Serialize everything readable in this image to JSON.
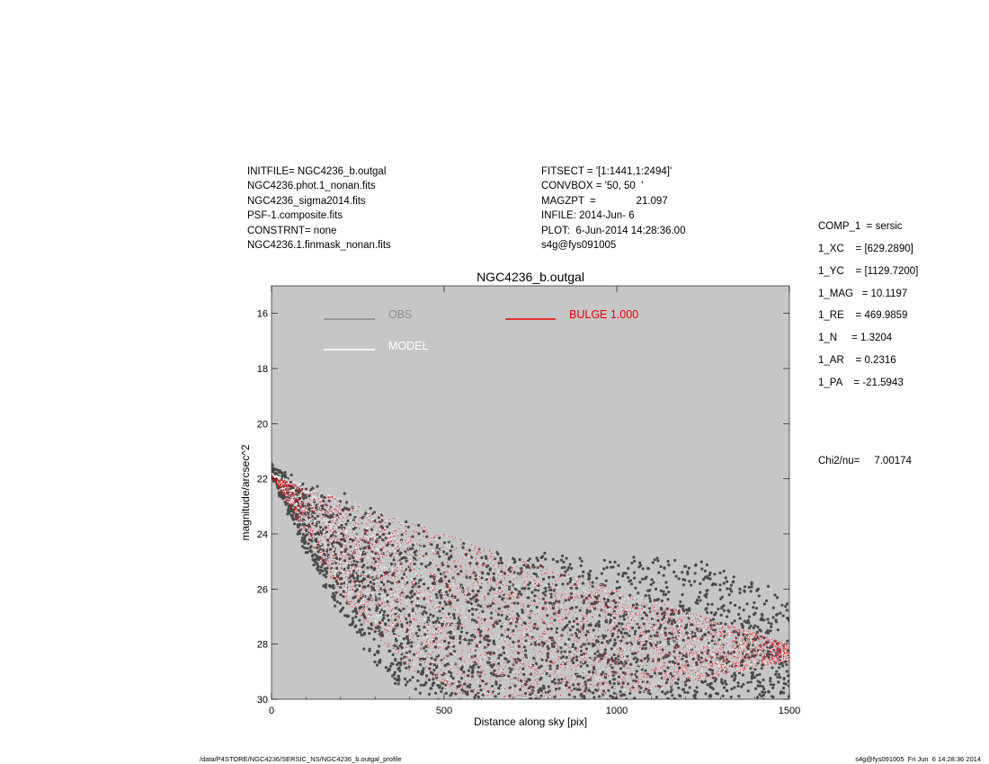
{
  "header_left": [
    "INITFILE= NGC4236_b.outgal",
    "NGC4236.phot.1_nonan.fits",
    "NGC4236_sigma2014.fits",
    "PSF-1.composite.fits",
    "CONSTRNT= none",
    "NGC4236.1.finmask_nonan.fits"
  ],
  "header_mid": [
    "FITSECT = '[1:1441,1:2494]'",
    "CONVBOX = '50, 50  '",
    "MAGZPT  =              21.097",
    "INFILE: 2014-Jun- 6",
    "PLOT:  6-Jun-2014 14:28:36.00",
    "s4g@fys091005"
  ],
  "params": [
    "COMP_1  = sersic",
    "1_XC    = [629.2890]",
    "1_YC    = [1129.7200]",
    "1_MAG   = 10.1197",
    "1_RE    = 469.9859",
    "1_N     = 1.3204",
    "1_AR    = 0.2316",
    "1_PA    = -21.5943"
  ],
  "chi2": "Chi2/nu=     7.00174",
  "footer": {
    "left": "/data/P4STORE/NGC4236/SERSIC_NS/NGC4236_b.outgal_profile",
    "right": "s4g@fys091005  Fri Jun  6 14:28:36 2014"
  },
  "colors": {
    "plot_bg": "#c6c6c6",
    "obs": "#4a4a4a",
    "model": "#f4f4f4",
    "bulge": "#ee0000",
    "legend_obs": "#8c8c8c"
  },
  "chart_data": {
    "type": "scatter",
    "title": "NGC4236_b.outgal",
    "xlabel": "Distance along sky [pix]",
    "ylabel": "magnitude/arcsec^2",
    "xlim": [
      0,
      1500
    ],
    "ylim": [
      30,
      15
    ],
    "y_inverted": true,
    "xticks": [
      "0",
      "500",
      "1000",
      "1500"
    ],
    "yticks": [
      "16",
      "18",
      "20",
      "22",
      "24",
      "26",
      "28",
      "30"
    ],
    "legend": {
      "placement": "top-left"
    },
    "legend_entries": [
      {
        "name": "OBS"
      },
      {
        "name": "MODEL"
      },
      {
        "name": "BULGE  1.000"
      }
    ],
    "series": [
      {
        "name": "OBS",
        "kind": "scatter",
        "envelope_upper": [
          [
            0,
            21.6
          ],
          [
            100,
            22.2
          ],
          [
            200,
            22.6
          ],
          [
            300,
            23.1
          ],
          [
            400,
            23.6
          ],
          [
            500,
            24.0
          ],
          [
            600,
            24.4
          ],
          [
            700,
            24.7
          ],
          [
            800,
            24.8
          ],
          [
            900,
            24.9
          ],
          [
            1000,
            25.0
          ],
          [
            1100,
            24.8
          ],
          [
            1200,
            24.8
          ],
          [
            1300,
            25.3
          ],
          [
            1400,
            25.8
          ],
          [
            1500,
            26.2
          ]
        ],
        "envelope_lower": [
          [
            0,
            21.9
          ],
          [
            50,
            23.3
          ],
          [
            100,
            24.7
          ],
          [
            150,
            25.8
          ],
          [
            200,
            26.9
          ],
          [
            250,
            27.8
          ],
          [
            300,
            28.6
          ],
          [
            350,
            29.3
          ],
          [
            400,
            29.8
          ],
          [
            430,
            30.0
          ]
        ]
      },
      {
        "name": "MODEL",
        "kind": "scatter",
        "envelope_upper": [
          [
            0,
            21.8
          ],
          [
            500,
            24.0
          ],
          [
            1000,
            26.0
          ],
          [
            1500,
            28.0
          ]
        ],
        "envelope_lower": [
          [
            0,
            21.8
          ],
          [
            200,
            25.9
          ],
          [
            400,
            28.7
          ],
          [
            550,
            30.0
          ],
          [
            1000,
            30.0
          ],
          [
            1500,
            28.6
          ]
        ]
      },
      {
        "name": "BULGE  1.000",
        "kind": "scatter",
        "envelope_upper": [
          [
            0,
            21.9
          ],
          [
            500,
            24.0
          ],
          [
            1000,
            26.0
          ],
          [
            1500,
            28.0
          ]
        ],
        "envelope_lower": [
          [
            0,
            21.9
          ],
          [
            200,
            26.3
          ],
          [
            400,
            29.0
          ],
          [
            550,
            30.0
          ],
          [
            1000,
            30.0
          ],
          [
            1500,
            28.6
          ]
        ]
      }
    ]
  }
}
